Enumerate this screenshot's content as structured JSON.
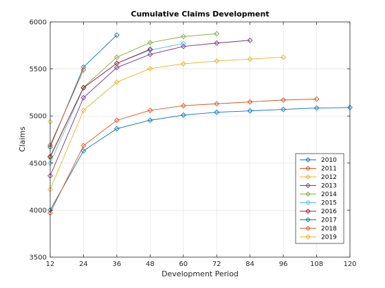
{
  "chart_data": {
    "type": "line",
    "title": "Cumulative Claims Development",
    "xlabel": "Development Period",
    "ylabel": "Claims",
    "xlim": [
      12,
      120
    ],
    "ylim": [
      3500,
      6000
    ],
    "xticks": [
      12,
      24,
      36,
      48,
      60,
      72,
      84,
      96,
      108,
      120
    ],
    "yticks": [
      3500,
      4000,
      4500,
      5000,
      5500,
      6000
    ],
    "grid": true,
    "marker": "diamond",
    "legend_position": "lower-right",
    "series": [
      {
        "name": "2010",
        "color": "#0072BD",
        "x": [
          12,
          24,
          36,
          48,
          60,
          72,
          84,
          96,
          108,
          120
        ],
        "y": [
          4000,
          4630,
          4865,
          4955,
          5010,
          5040,
          5055,
          5070,
          5085,
          5090
        ]
      },
      {
        "name": "2011",
        "color": "#D95319",
        "x": [
          12,
          24,
          36,
          48,
          60,
          72,
          84,
          96,
          108
        ],
        "y": [
          3970,
          4685,
          4955,
          5060,
          5110,
          5130,
          5150,
          5170,
          5180
        ]
      },
      {
        "name": "2012",
        "color": "#EDB120",
        "x": [
          12,
          24,
          36,
          48,
          60,
          72,
          84,
          96
        ],
        "y": [
          4220,
          5060,
          5360,
          5505,
          5555,
          5585,
          5605,
          5625
        ]
      },
      {
        "name": "2013",
        "color": "#7E2F8E",
        "x": [
          12,
          24,
          36,
          48,
          60,
          72,
          84
        ],
        "y": [
          4365,
          5195,
          5515,
          5655,
          5740,
          5775,
          5805
        ]
      },
      {
        "name": "2014",
        "color": "#77AC30",
        "x": [
          12,
          24,
          36,
          48,
          60,
          72
        ],
        "y": [
          4560,
          5305,
          5625,
          5780,
          5845,
          5875
        ]
      },
      {
        "name": "2015",
        "color": "#4DBEEE",
        "x": [
          12,
          24,
          36,
          48,
          60
        ],
        "y": [
          4500,
          5300,
          5560,
          5700,
          5770
        ]
      },
      {
        "name": "2016",
        "color": "#A2142F",
        "x": [
          12,
          24,
          36,
          48
        ],
        "y": [
          4570,
          5300,
          5560,
          5710
        ]
      },
      {
        "name": "2017",
        "color": "#0072BD",
        "x": [
          12,
          24,
          36
        ],
        "y": [
          4670,
          5520,
          5860
        ]
      },
      {
        "name": "2018",
        "color": "#D95319",
        "x": [
          12,
          24
        ],
        "y": [
          4690,
          5490
        ]
      },
      {
        "name": "2019",
        "color": "#EDB120",
        "x": [
          12
        ],
        "y": [
          4940
        ]
      }
    ]
  }
}
